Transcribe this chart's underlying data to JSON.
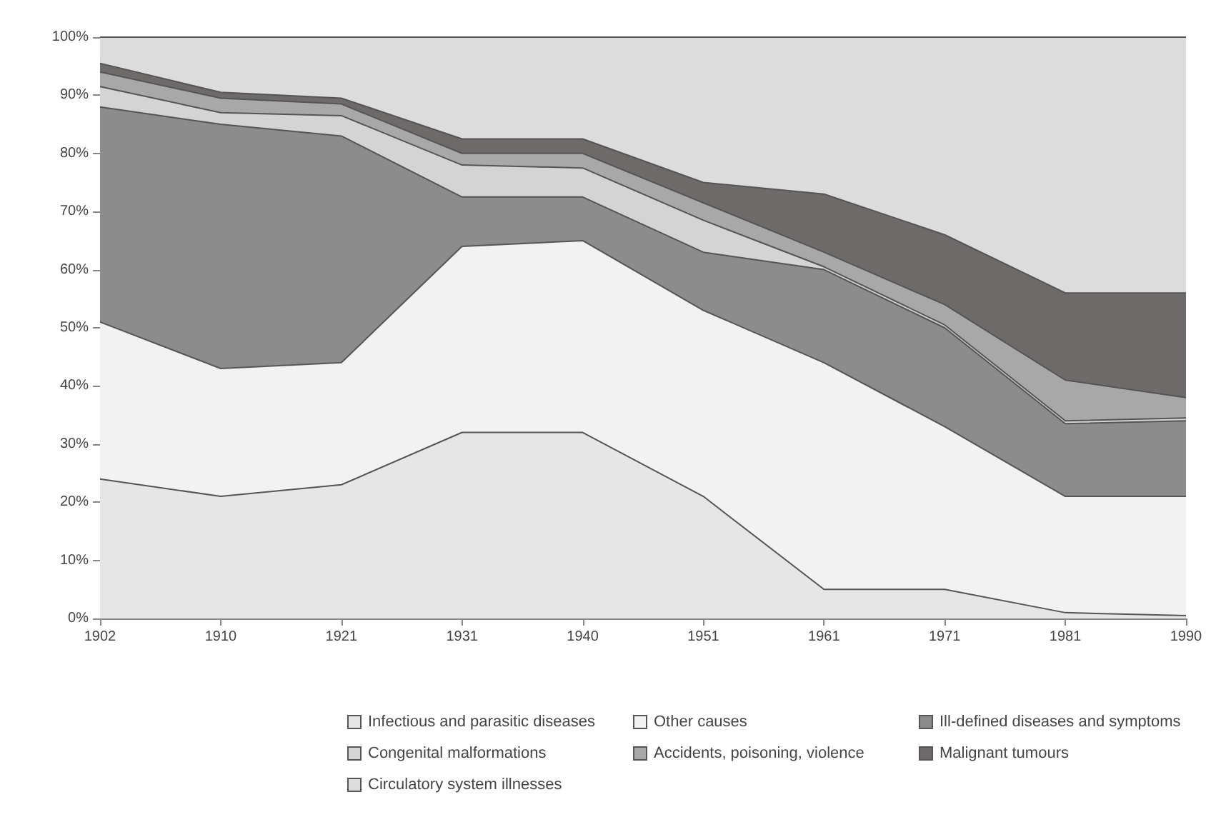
{
  "chart_data": {
    "type": "area",
    "stacked": true,
    "categories": [
      "1902",
      "1910",
      "1921",
      "1931",
      "1940",
      "1951",
      "1961",
      "1971",
      "1981",
      "1990"
    ],
    "series": [
      {
        "name": "Infectious and parasitic diseases",
        "color": "#e6e6e6",
        "values": [
          24,
          21,
          23,
          32,
          32,
          21,
          5,
          5,
          1,
          0.5
        ]
      },
      {
        "name": "Other causes",
        "color": "#f2f2f2",
        "values": [
          27,
          22,
          21,
          32,
          33,
          32,
          39,
          28,
          20,
          20.5
        ]
      },
      {
        "name": "Ill-defined diseases and symptoms",
        "color": "#8c8c8c",
        "values": [
          37,
          42,
          39,
          8.5,
          7.5,
          10,
          16,
          17,
          12.5,
          13
        ]
      },
      {
        "name": "Congenital malformations",
        "color": "#d4d4d4",
        "values": [
          3.5,
          2,
          3.5,
          5.5,
          5,
          5.5,
          0.5,
          0.5,
          0.5,
          0.5
        ]
      },
      {
        "name": "Accidents, poisoning, violence",
        "color": "#a8a8a8",
        "values": [
          2.5,
          2.5,
          2,
          2,
          2.5,
          3,
          2.5,
          3.5,
          7,
          3.5
        ]
      },
      {
        "name": "Malignant tumours",
        "color": "#6e6a6a",
        "values": [
          1.5,
          1,
          1,
          2.5,
          2.5,
          3.5,
          10,
          12,
          15,
          18
        ]
      },
      {
        "name": "Circulatory system illnesses",
        "color": "#dcdcdc",
        "values": [
          4.5,
          9.5,
          10.5,
          17.5,
          17.5,
          25,
          27,
          34,
          44,
          44
        ]
      }
    ],
    "ylim": [
      0,
      100
    ],
    "yticks": [
      {
        "value": 0,
        "label": "0%"
      },
      {
        "value": 10,
        "label": "10%"
      },
      {
        "value": 20,
        "label": "20%"
      },
      {
        "value": 30,
        "label": "30%"
      },
      {
        "value": 40,
        "label": "40%"
      },
      {
        "value": 50,
        "label": "50%"
      },
      {
        "value": 60,
        "label": "60%"
      },
      {
        "value": 70,
        "label": "70%"
      },
      {
        "value": 80,
        "label": "80%"
      },
      {
        "value": 90,
        "label": "90%"
      },
      {
        "value": 100,
        "label": "100%"
      }
    ],
    "grid": false,
    "legend": "bottom"
  }
}
